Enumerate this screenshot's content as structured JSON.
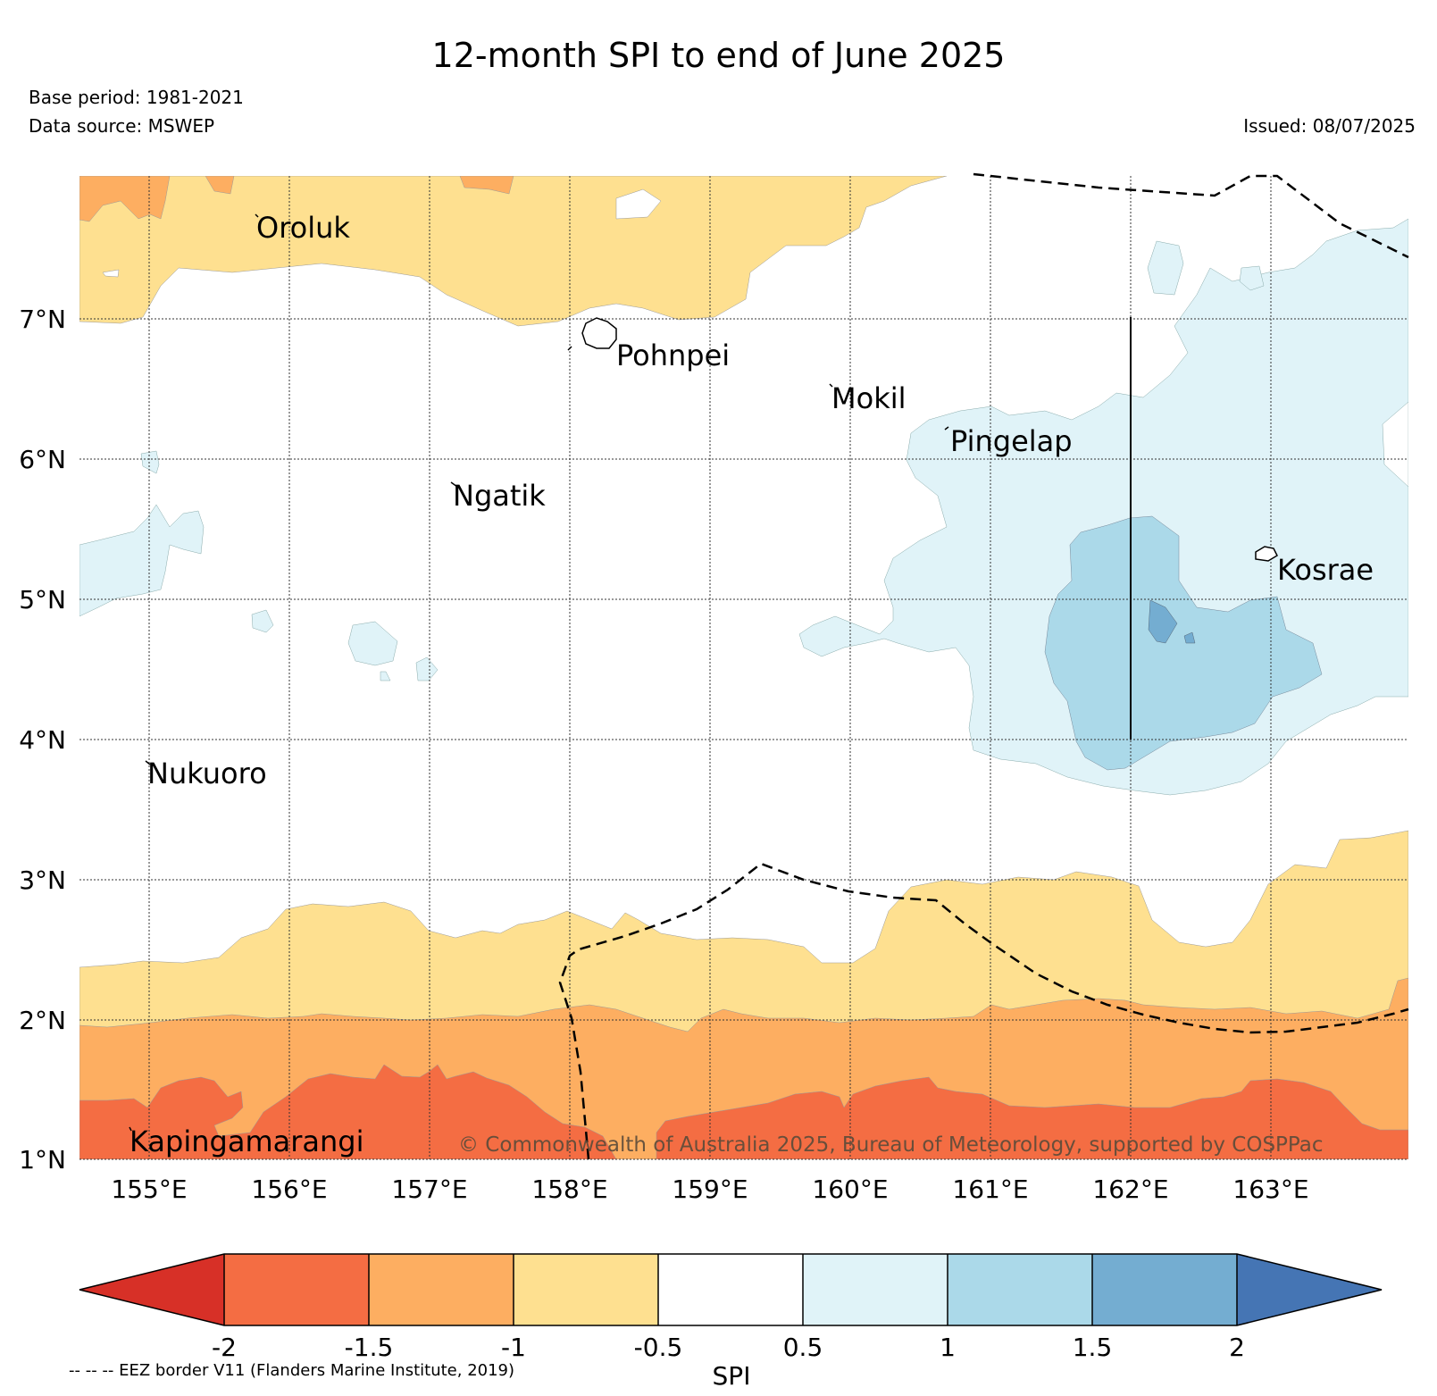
{
  "title": "12-month SPI to end of June 2025",
  "base_period": "Base period: 1981-2021",
  "data_source": "Data source: MSWEP",
  "issued": "Issued: 08/07/2025",
  "copyright": "© Commonwealth of Australia 2025, Bureau of Meteorology, supported by COSPPac",
  "eez_note": "-- -- -- EEZ border V11 (Flanders Marine Institute, 2019)",
  "map": {
    "lon_range": [
      154.5,
      164.0
    ],
    "lat_range": [
      1.0,
      8.0
    ],
    "lon_ticks": [
      "155°E",
      "156°E",
      "157°E",
      "158°E",
      "159°E",
      "160°E",
      "161°E",
      "162°E",
      "163°E"
    ],
    "lat_ticks": [
      "1°N",
      "2°N",
      "3°N",
      "4°N",
      "5°N",
      "6°N",
      "7°N"
    ],
    "gridlines": true,
    "islands": [
      "Oroluk",
      "Pohnpei",
      "Mokil",
      "Pingelap",
      "Ngatik",
      "Kosrae",
      "Nukuoro",
      "Kapingamarangi"
    ]
  },
  "colorbar": {
    "label": "SPI",
    "ticks": [
      "-2",
      "-1.5",
      "-1",
      "-0.5",
      "0.5",
      "1",
      "1.5",
      "2"
    ],
    "colors": {
      "below_-2": "#d73027",
      "-2_-1.5": "#f46d43",
      "-1.5_-1": "#fdae61",
      "-1_-0.5": "#fee090",
      "-0.5_0.5": "#ffffff",
      "0.5_1": "#e0f3f8",
      "1_1.5": "#abd9e9",
      "1.5_2": "#74add1",
      "above_2": "#4575b4"
    }
  }
}
